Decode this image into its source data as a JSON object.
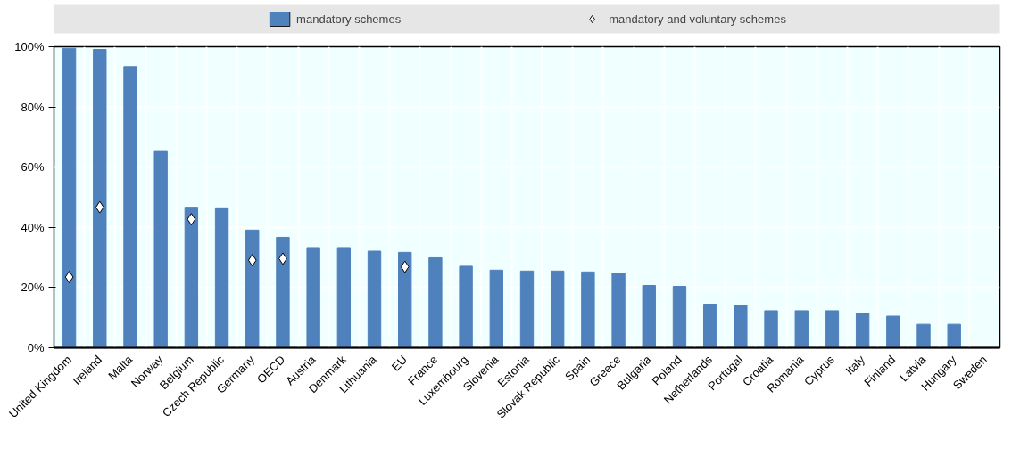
{
  "chart_data": {
    "type": "bar",
    "categories": [
      "United Kingdom",
      "Ireland",
      "Malta",
      "Norway",
      "Belgium",
      "Czech Republic",
      "Germany",
      "OECD",
      "Austria",
      "Denmark",
      "Lithuania",
      "EU",
      "France",
      "Luxembourg",
      "Slovenia",
      "Estonia",
      "Slovak Republic",
      "Spain",
      "Greece",
      "Bulgaria",
      "Poland",
      "Netherlands",
      "Portugal",
      "Croatia",
      "Romania",
      "Cyprus",
      "Italy",
      "Finland",
      "Latvia",
      "Hungary",
      "Sweden"
    ],
    "series": [
      {
        "name": "mandatory schemes",
        "color": "#4f81bd",
        "values": [
          99.5,
          99.1,
          93.4,
          65.5,
          46.7,
          46.5,
          39.1,
          36.7,
          33.3,
          33.3,
          32.1,
          31.7,
          29.9,
          27.1,
          25.8,
          25.5,
          25.5,
          25.2,
          24.8,
          20.7,
          20.4,
          14.5,
          14.1,
          12.3,
          12.3,
          12.3,
          11.4,
          10.5,
          7.8,
          7.8,
          0
        ]
      },
      {
        "name": "mandatory and voluntary schemes",
        "type": "scatter",
        "marker": "diamond",
        "color": "#ffffff",
        "values": [
          23.5,
          46.7,
          null,
          null,
          42.7,
          null,
          29.1,
          29.6,
          null,
          null,
          null,
          26.9,
          null,
          null,
          null,
          null,
          null,
          null,
          null,
          null,
          null,
          null,
          null,
          null,
          null,
          null,
          null,
          null,
          null,
          null,
          null
        ]
      }
    ],
    "ylim": [
      0,
      100
    ],
    "yticks": [
      {
        "value": 0,
        "label": "0%"
      },
      {
        "value": 20,
        "label": "20%"
      },
      {
        "value": 40,
        "label": "40%"
      },
      {
        "value": 60,
        "label": "60%"
      },
      {
        "value": 80,
        "label": "80%"
      },
      {
        "value": 100,
        "label": "100%"
      }
    ],
    "grid": true,
    "legend": "top"
  }
}
